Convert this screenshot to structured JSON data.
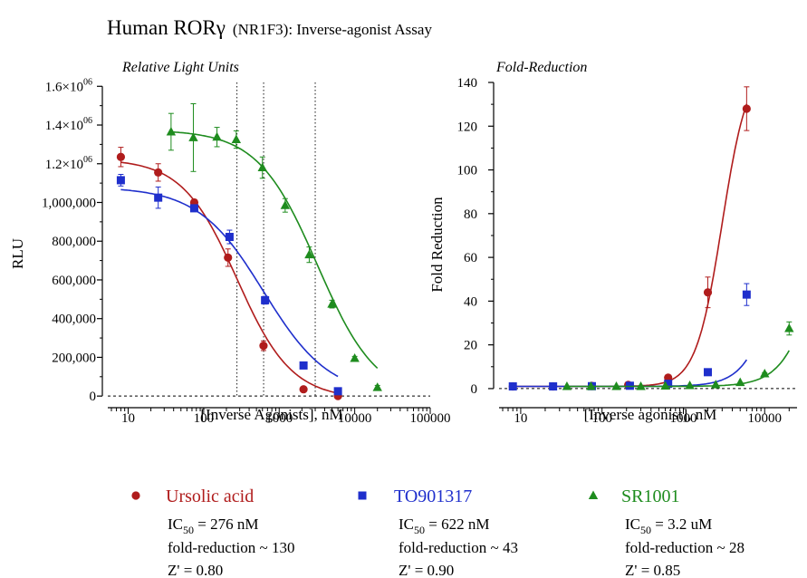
{
  "title": {
    "main": "Human RORγ",
    "sub": "(NR1F3): Inverse-agonist Assay"
  },
  "colors": {
    "ursolic": "#b01c1c",
    "to901317": "#1f2fcc",
    "sr1001": "#1e8c1e",
    "axis": "#000000"
  },
  "chart_data": [
    {
      "type": "scatter",
      "title": "Relative Light Units",
      "xlabel": "[Inverse Agonists], nM",
      "ylabel": "RLU",
      "xscale": "log",
      "xlim": [
        6,
        100000
      ],
      "ylim": [
        -60000,
        1620000
      ],
      "x_ticks": [
        10,
        100,
        1000,
        10000,
        100000
      ],
      "x_tick_labels": [
        "10",
        "100",
        "1000",
        "10000",
        "100000"
      ],
      "y_ticks": [
        0,
        200000,
        400000,
        600000,
        800000,
        1000000,
        1200000,
        1400000,
        1600000
      ],
      "y_tick_labels": [
        "0",
        "200,000",
        "400,000",
        "600,000",
        "800,000",
        "1,000,000",
        "1.2×10",
        "1.4×10",
        "1.6×10"
      ],
      "y_tick_exponent": "06",
      "reference_lines_x": [
        276,
        622,
        3000
      ],
      "baseline": 0,
      "series": [
        {
          "name": "Ursolic acid",
          "color_key": "ursolic",
          "marker": "circle",
          "x": [
            8,
            25,
            75,
            210,
            620,
            2100,
            6000
          ],
          "y": [
            1235000,
            1155000,
            1000000,
            715000,
            260000,
            35000,
            0
          ],
          "err": [
            50000,
            45000,
            15000,
            45000,
            25000,
            10000,
            0
          ],
          "fit": {
            "top": 1225000,
            "bottom": -15000,
            "ic50": 276,
            "hill": 1.2
          }
        },
        {
          "name": "TO901317",
          "color_key": "to901317",
          "marker": "square",
          "x": [
            8,
            25,
            75,
            220,
            650,
            2100,
            6000
          ],
          "y": [
            1115000,
            1025000,
            970000,
            822000,
            495000,
            158000,
            25000
          ],
          "err": [
            30000,
            55000,
            15000,
            35000,
            20000,
            15000,
            10000
          ],
          "fit": {
            "top": 1080000,
            "bottom": 0,
            "ic50": 622,
            "hill": 1.0
          }
        },
        {
          "name": "SR1001",
          "color_key": "sr1001",
          "marker": "triangle",
          "x": [
            37,
            73,
            150,
            270,
            600,
            1200,
            2500,
            5000,
            10000,
            20000
          ],
          "y": [
            1365000,
            1335000,
            1338000,
            1325000,
            1180000,
            985000,
            730000,
            475000,
            195000,
            45000
          ],
          "err": [
            95000,
            175000,
            50000,
            45000,
            55000,
            35000,
            40000,
            20000,
            10000,
            10000
          ],
          "fit": {
            "top": 1375000,
            "bottom": -20000,
            "ic50": 3200,
            "hill": 1.1
          }
        }
      ]
    },
    {
      "type": "scatter",
      "title": "Fold-Reduction",
      "xlabel": "[Inverse agonist], nM",
      "ylabel": "Fold Reduction",
      "xscale": "log",
      "xlim": [
        6,
        25000
      ],
      "ylim": [
        -5,
        140
      ],
      "x_ticks": [
        10,
        100,
        1000,
        10000
      ],
      "x_tick_labels": [
        "10",
        "100",
        "1000",
        "10000"
      ],
      "y_ticks": [
        0,
        20,
        40,
        60,
        80,
        100,
        120,
        140
      ],
      "y_tick_labels": [
        "0",
        "20",
        "40",
        "60",
        "80",
        "100",
        "120",
        "140"
      ],
      "baseline": 0,
      "series": [
        {
          "name": "Ursolic acid",
          "color_key": "ursolic",
          "marker": "circle",
          "x": [
            8,
            25,
            75,
            210,
            650,
            2000,
            6000
          ],
          "y": [
            1,
            1,
            1.2,
            1.7,
            5,
            44,
            128
          ],
          "err": [
            0,
            0,
            0,
            0,
            0,
            7,
            10
          ],
          "fit": {
            "bottom": 1,
            "top": 150,
            "ec50": 3000,
            "hill": 2.7
          }
        },
        {
          "name": "TO901317",
          "color_key": "to901317",
          "marker": "square",
          "x": [
            8,
            25,
            75,
            220,
            650,
            2000,
            6000
          ],
          "y": [
            1,
            1,
            1.1,
            1.3,
            2.2,
            7.5,
            43
          ],
          "err": [
            0,
            0,
            0,
            0,
            0,
            0,
            5
          ],
          "fit": {
            "bottom": 1,
            "top": 200,
            "ec50": 22000,
            "hill": 2.1
          }
        },
        {
          "name": "SR1001",
          "color_key": "sr1001",
          "marker": "triangle",
          "x": [
            37,
            73,
            150,
            300,
            600,
            1200,
            2500,
            5000,
            10000,
            20000
          ],
          "y": [
            1,
            1,
            1,
            1,
            1.2,
            1.4,
            1.8,
            2.8,
            6.8,
            27.5
          ],
          "err": [
            0,
            0,
            0,
            0,
            0,
            0,
            0,
            0,
            0.5,
            3
          ],
          "fit": {
            "bottom": 1,
            "top": 120,
            "ec50": 50000,
            "hill": 2.0
          }
        }
      ]
    }
  ],
  "legend": [
    {
      "name": "Ursolic acid",
      "color_key": "ursolic",
      "marker": "circle",
      "ic50_prefix": "IC",
      "ic50_sub": "50",
      "ic50_value": " = 276 nM",
      "fold": "fold-reduction ~ 130",
      "z": "Z' = 0.80"
    },
    {
      "name": "TO901317",
      "color_key": "to901317",
      "marker": "square",
      "ic50_prefix": "IC",
      "ic50_sub": "50",
      "ic50_value": " = 622 nM",
      "fold": "fold-reduction ~ 43",
      "z": "Z' = 0.90"
    },
    {
      "name": "SR1001",
      "color_key": "sr1001",
      "marker": "triangle",
      "ic50_prefix": "IC",
      "ic50_sub": "50",
      "ic50_value": " = 3.2 uM",
      "fold": "fold-reduction ~ 28",
      "z": "Z' = 0.85"
    }
  ]
}
